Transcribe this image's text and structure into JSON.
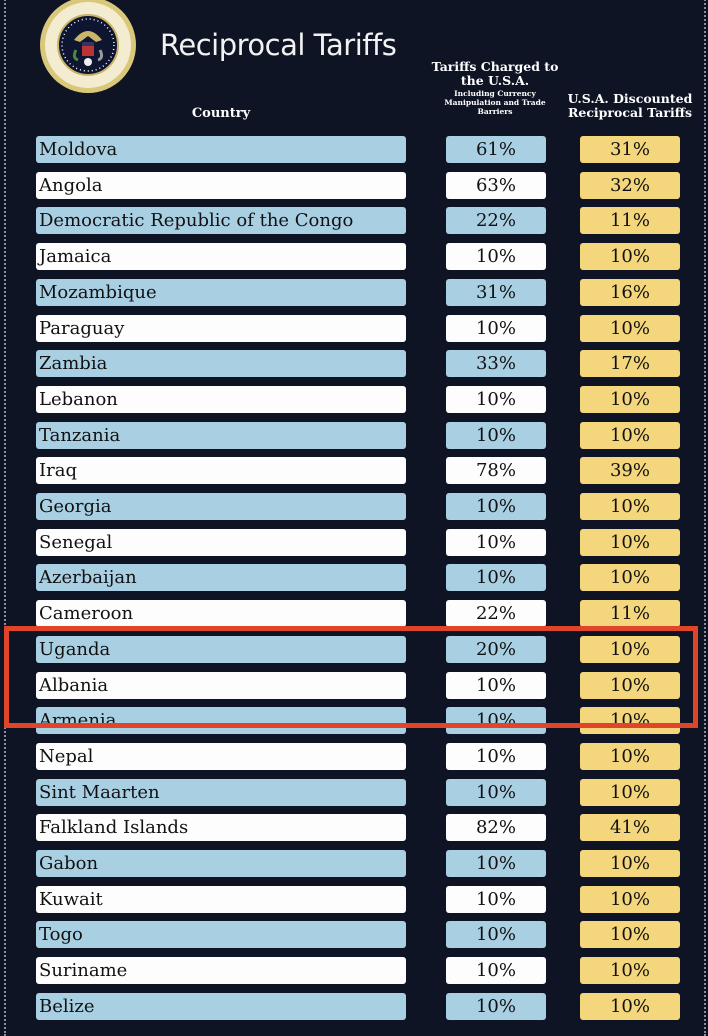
{
  "title": "Reciprocal Tariffs",
  "seal_text": "SEAL OF THE PRESIDENT OF THE UNITED STATES",
  "headers": {
    "country": "Country",
    "charged": "Tariffs Charged to the U.S.A.",
    "charged_sub": "Including Currency Manipulation and Trade Barriers",
    "discounted": "U.S.A. Discounted Reciprocal Tariffs"
  },
  "colors": {
    "background": "#0f1425",
    "row_blue": "#a9cfe3",
    "row_white": "#fdfdfd",
    "discount_yellow": "#f4d67c",
    "highlight": "#e0452a"
  },
  "highlighted_rows": [
    "Uganda",
    "Albania",
    "Armenia"
  ],
  "rows": [
    {
      "country": "Moldova",
      "charged": "61%",
      "discounted": "31%"
    },
    {
      "country": "Angola",
      "charged": "63%",
      "discounted": "32%"
    },
    {
      "country": "Democratic Republic of the Congo",
      "charged": "22%",
      "discounted": "11%"
    },
    {
      "country": "Jamaica",
      "charged": "10%",
      "discounted": "10%"
    },
    {
      "country": "Mozambique",
      "charged": "31%",
      "discounted": "16%"
    },
    {
      "country": "Paraguay",
      "charged": "10%",
      "discounted": "10%"
    },
    {
      "country": "Zambia",
      "charged": "33%",
      "discounted": "17%"
    },
    {
      "country": "Lebanon",
      "charged": "10%",
      "discounted": "10%"
    },
    {
      "country": "Tanzania",
      "charged": "10%",
      "discounted": "10%"
    },
    {
      "country": "Iraq",
      "charged": "78%",
      "discounted": "39%"
    },
    {
      "country": "Georgia",
      "charged": "10%",
      "discounted": "10%"
    },
    {
      "country": "Senegal",
      "charged": "10%",
      "discounted": "10%"
    },
    {
      "country": "Azerbaijan",
      "charged": "10%",
      "discounted": "10%"
    },
    {
      "country": "Cameroon",
      "charged": "22%",
      "discounted": "11%"
    },
    {
      "country": "Uganda",
      "charged": "20%",
      "discounted": "10%"
    },
    {
      "country": "Albania",
      "charged": "10%",
      "discounted": "10%"
    },
    {
      "country": "Armenia",
      "charged": "10%",
      "discounted": "10%"
    },
    {
      "country": "Nepal",
      "charged": "10%",
      "discounted": "10%"
    },
    {
      "country": "Sint Maarten",
      "charged": "10%",
      "discounted": "10%"
    },
    {
      "country": "Falkland Islands",
      "charged": "82%",
      "discounted": "41%"
    },
    {
      "country": "Gabon",
      "charged": "10%",
      "discounted": "10%"
    },
    {
      "country": "Kuwait",
      "charged": "10%",
      "discounted": "10%"
    },
    {
      "country": "Togo",
      "charged": "10%",
      "discounted": "10%"
    },
    {
      "country": "Suriname",
      "charged": "10%",
      "discounted": "10%"
    },
    {
      "country": "Belize",
      "charged": "10%",
      "discounted": "10%"
    }
  ]
}
